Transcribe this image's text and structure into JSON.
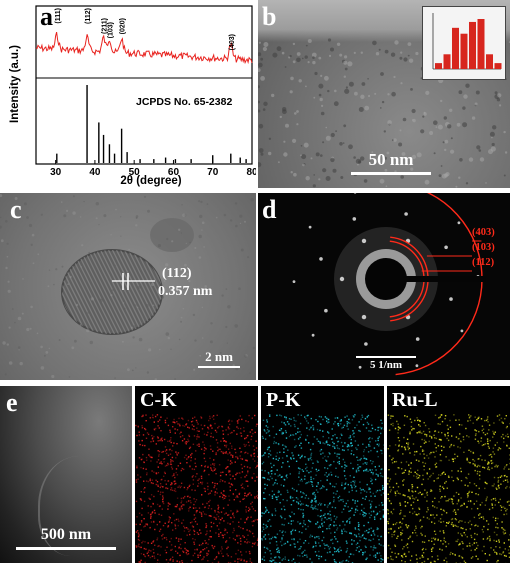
{
  "panels": {
    "a": {
      "letter": "a",
      "chart_data": {
        "type": "line",
        "xlabel": "2θ (degree)",
        "ylabel": "Intensity (a.u.)",
        "xlim": [
          25,
          80
        ],
        "xticks": [
          "30",
          "40",
          "50",
          "60",
          "70",
          "80"
        ],
        "reference_label": "JCPDS No. 65-2382",
        "peak_labels": [
          {
            "label": "(111)",
            "x": 30.3
          },
          {
            "label": "(112)",
            "x": 38.0
          },
          {
            "label": "(211)",
            "x": 42.2
          },
          {
            "label": "(103)",
            "x": 43.7
          },
          {
            "label": "(020)",
            "x": 46.8
          },
          {
            "label": "(403)",
            "x": 74.6
          }
        ],
        "reference_sticks": [
          {
            "x": 30.3,
            "h": 0.12
          },
          {
            "x": 38.0,
            "h": 1.0
          },
          {
            "x": 41.0,
            "h": 0.52
          },
          {
            "x": 42.2,
            "h": 0.36
          },
          {
            "x": 43.7,
            "h": 0.24
          },
          {
            "x": 45.0,
            "h": 0.12
          },
          {
            "x": 46.8,
            "h": 0.44
          },
          {
            "x": 48.2,
            "h": 0.14
          },
          {
            "x": 51.5,
            "h": 0.05
          },
          {
            "x": 55.0,
            "h": 0.05
          },
          {
            "x": 58.0,
            "h": 0.07
          },
          {
            "x": 60.5,
            "h": 0.05
          },
          {
            "x": 64.5,
            "h": 0.05
          },
          {
            "x": 70.0,
            "h": 0.1
          },
          {
            "x": 74.6,
            "h": 0.12
          },
          {
            "x": 77.0,
            "h": 0.07
          },
          {
            "x": 78.5,
            "h": 0.05
          }
        ],
        "line_color": "#e8231f"
      }
    },
    "b": {
      "letter": "b",
      "scale_bar": "50 nm",
      "inset_chart": {
        "type": "bar",
        "values": [
          2,
          5,
          14,
          12,
          16,
          17,
          5,
          2
        ],
        "bar_color": "#d7261e"
      }
    },
    "c": {
      "letter": "c",
      "plane": "(112)",
      "spacing": "0.357 nm",
      "scale_bar": "2 nm"
    },
    "d": {
      "letter": "d",
      "rings": [
        "(403)",
        "(103)",
        "(112)"
      ],
      "scale_bar": "5 1/nm",
      "ring_color": "#ff2a1a"
    },
    "e": {
      "letter": "e",
      "scale_bar": "500 nm",
      "maps": [
        {
          "label": "C-K",
          "color": "#e02020"
        },
        {
          "label": "P-K",
          "color": "#20c0d0"
        },
        {
          "label": "Ru-L",
          "color": "#d8d820"
        }
      ]
    }
  }
}
